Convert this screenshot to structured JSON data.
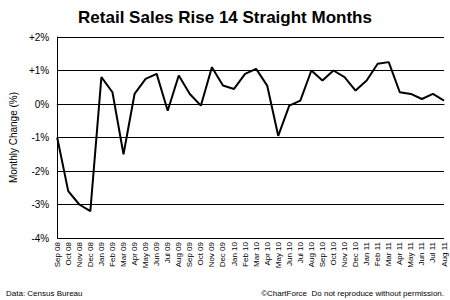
{
  "chart_data": {
    "type": "line",
    "title": "Retail Sales Rise 14 Straight Months",
    "ylabel": "Monthly Change (%)",
    "annotations": [
      "Data: Census Bureau",
      "©ChartForce  Do not reproduce without permission."
    ],
    "categories": [
      "Sep 08",
      "Oct 08",
      "Nov 08",
      "Dec 08",
      "Jan 09",
      "Feb 09",
      "Mar 09",
      "Apr 09",
      "May 09",
      "Jun 09",
      "Jul 09",
      "Aug 09",
      "Sep 09",
      "Oct 09",
      "Nov 09",
      "Dec 09",
      "Jan 10",
      "Feb 10",
      "Mar 10",
      "Apr 10",
      "May 10",
      "Jun 10",
      "Jul 10",
      "Aug 10",
      "Sep 10",
      "Oct 10",
      "Nov 10",
      "Dec 10",
      "Jan 11",
      "Feb 11",
      "Mar 11",
      "Apr 11",
      "May 11",
      "Jun 11",
      "Jul 11",
      "Aug 11"
    ],
    "values": [
      -1.0,
      -2.6,
      -3.0,
      -3.2,
      0.8,
      0.35,
      -1.5,
      0.3,
      0.75,
      0.9,
      -0.2,
      0.85,
      0.3,
      -0.05,
      1.1,
      0.55,
      0.45,
      0.9,
      1.05,
      0.55,
      -0.95,
      -0.05,
      0.1,
      1.0,
      0.7,
      1.0,
      0.8,
      0.4,
      0.7,
      1.2,
      1.25,
      0.35,
      0.3,
      0.15,
      0.3,
      0.1
    ],
    "color": "#000000",
    "ylim": [
      -4,
      2
    ],
    "yticks": [
      {
        "value": -4,
        "label": "-4%"
      },
      {
        "value": -3,
        "label": "-3%"
      },
      {
        "value": -2,
        "label": "-2%"
      },
      {
        "value": -1,
        "label": "-1%"
      },
      {
        "value": 0,
        "label": "0%"
      },
      {
        "value": 1,
        "label": "+1%"
      },
      {
        "value": 2,
        "label": "+2%"
      }
    ],
    "grid": true
  }
}
